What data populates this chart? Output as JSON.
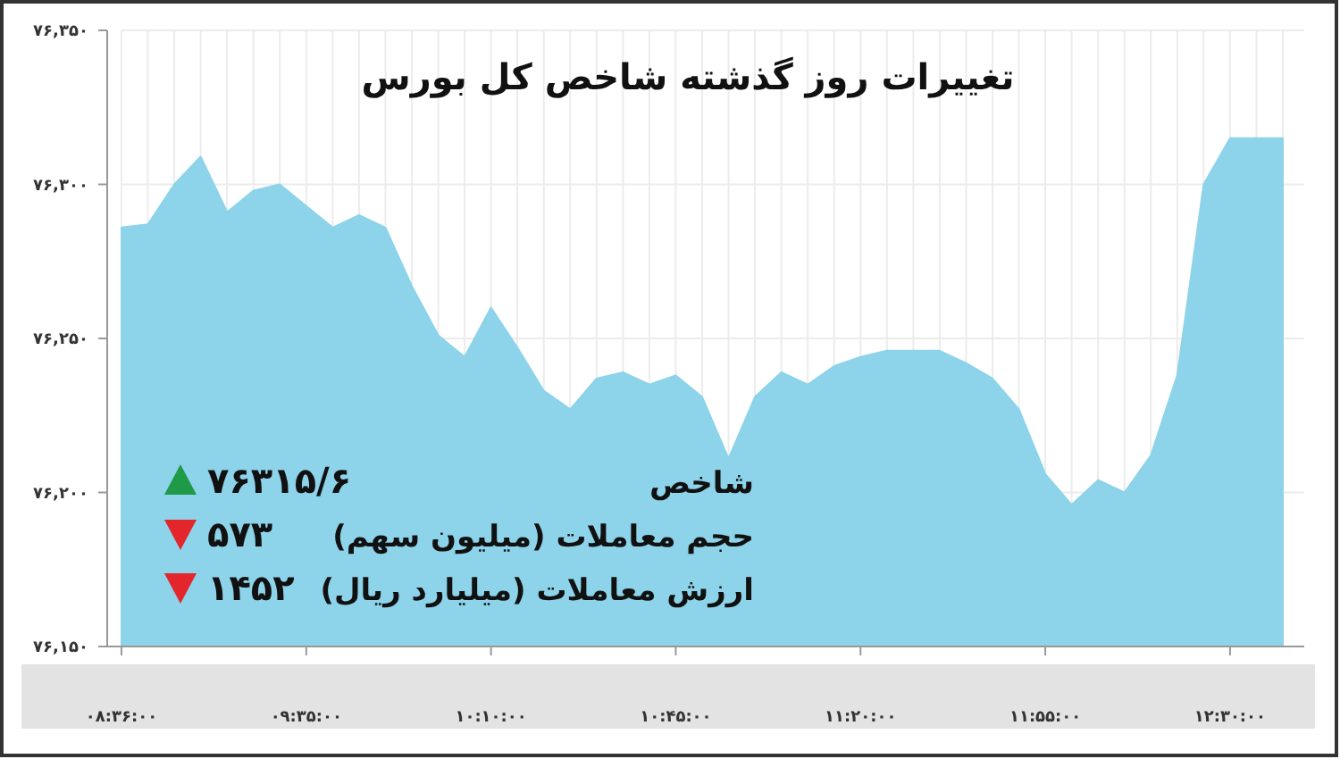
{
  "chart_data": {
    "type": "area",
    "title": "تغییرات روز گذشته شاخص کل بورس",
    "categories": [
      "۰۸:۳۶:۰۰",
      null,
      null,
      null,
      null,
      null,
      null,
      "۰۹:۳۵:۰۰",
      null,
      null,
      null,
      null,
      null,
      null,
      "۱۰:۱۰:۰۰",
      null,
      null,
      null,
      null,
      null,
      null,
      "۱۰:۴۵:۰۰",
      null,
      null,
      null,
      null,
      null,
      null,
      "۱۱:۲۰:۰۰",
      null,
      null,
      null,
      null,
      null,
      null,
      "۱۱:۵۵:۰۰",
      null,
      null,
      null,
      null,
      null,
      null,
      "۱۲:۳۰:۰۰",
      null,
      null
    ],
    "values": [
      76286,
      76287,
      76300,
      76309,
      76291,
      76298,
      76300,
      76293,
      76286,
      76290,
      76286,
      76267,
      76251,
      76244,
      76260,
      76247,
      76233,
      76227,
      76237,
      76239,
      76235,
      76238,
      76231,
      76211,
      76231,
      76239,
      76235,
      76241,
      76244,
      76246,
      76246,
      76246,
      76242,
      76237,
      76227,
      76206,
      76196,
      76204,
      76200,
      76212,
      76238,
      76300,
      76315,
      76315,
      76315
    ],
    "color": "#8dd3ea",
    "ylim": [
      76150,
      76350
    ],
    "yticks": [
      {
        "value": 76150,
        "label": "۷۶,۱۵۰"
      },
      {
        "value": 76200,
        "label": "۷۶,۲۰۰"
      },
      {
        "value": 76250,
        "label": "۷۶,۲۵۰"
      },
      {
        "value": 76300,
        "label": "۷۶,۳۰۰"
      },
      {
        "value": 76350,
        "label": "۷۶,۳۵۰"
      }
    ],
    "grid": true,
    "annotations": [
      "شاخص",
      "۷۶۳۱۵/۶",
      "حجم معاملات (میلیون سهم)",
      "۵۷۳",
      "ارزش معاملات (میلیارد ریال)",
      "۱۴۵۲"
    ]
  }
}
